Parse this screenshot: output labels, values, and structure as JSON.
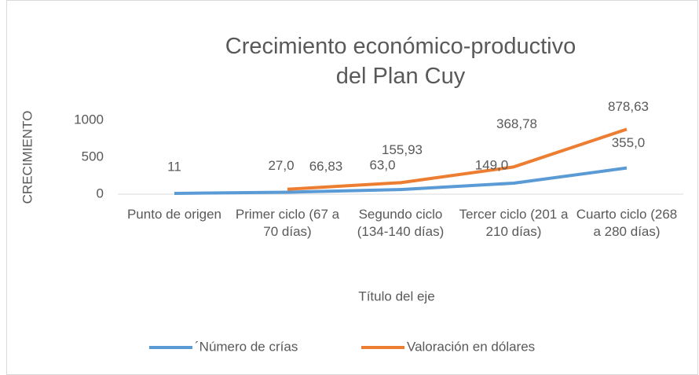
{
  "chart_data": {
    "type": "line",
    "title": "Crecimiento económico-productivo del Plan Cuy",
    "y_label": "CRECIMIENTO",
    "x_label": "Título del eje",
    "categories": [
      "Punto de origen",
      "Primer ciclo (67 a 70 días)",
      "Segundo ciclo (134-140 días)",
      "Tercer ciclo (201 a 210 días)",
      "Cuarto ciclo (268 a 280 días)"
    ],
    "series": [
      {
        "name": "´Número de crías",
        "color": "#5b9bd5",
        "values": [
          11,
          27,
          63,
          149,
          355
        ],
        "value_labels": [
          "11",
          "27,0",
          "63,0",
          "149,0",
          "355,0"
        ]
      },
      {
        "name": "Valoración en dólares",
        "color": "#ed7d31",
        "values": [
          null,
          66.83,
          155.93,
          368.78,
          878.63
        ],
        "value_labels": [
          null,
          "66,83",
          "155,93",
          "368,78",
          "878,63"
        ]
      }
    ],
    "ylim": [
      0,
      1000
    ],
    "yticks": [
      0,
      500,
      1000
    ],
    "grid": false,
    "legend": "bottom"
  }
}
